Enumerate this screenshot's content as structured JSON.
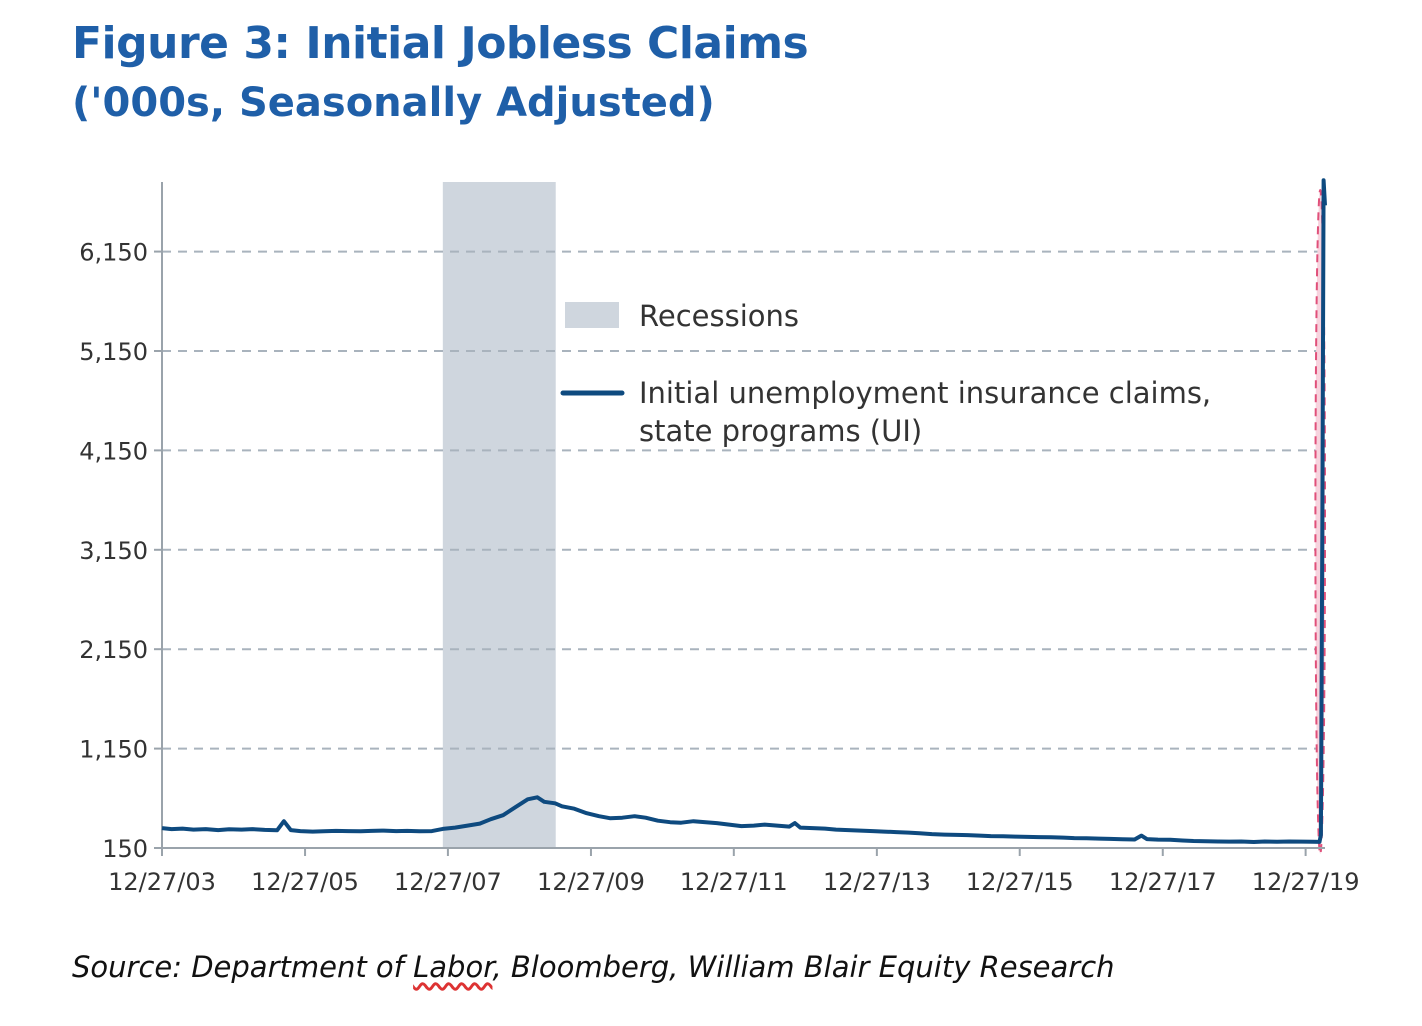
{
  "header": {
    "title": "Figure 3: Initial Jobless Claims",
    "subtitle": "('000s, Seasonally Adjusted)"
  },
  "footer": {
    "source_prefix": "Source: Department of ",
    "source_underlined": "Labor",
    "source_suffix": ", Bloomberg, William Blair Equity Research"
  },
  "chart_data": {
    "type": "line",
    "title": "Figure 3: Initial Jobless Claims",
    "subtitle": "('000s, Seasonally Adjusted)",
    "xlabel": "",
    "ylabel": "",
    "ylim": [
      150,
      6850
    ],
    "y_ticks": [
      150,
      1150,
      2150,
      3150,
      4150,
      5150,
      6150
    ],
    "y_tick_labels": [
      "150",
      "1,150",
      "2,150",
      "3,150",
      "4,150",
      "5,150",
      "6,150"
    ],
    "xlim": [
      "2003-12-27",
      "2020-04-04"
    ],
    "x_ticks": [
      "2003-12-27",
      "2005-12-27",
      "2007-12-27",
      "2009-12-27",
      "2011-12-27",
      "2013-12-27",
      "2015-12-27",
      "2017-12-27",
      "2019-12-27"
    ],
    "x_tick_labels": [
      "12/27/03",
      "12/27/05",
      "12/27/07",
      "12/27/09",
      "12/27/11",
      "12/27/13",
      "12/27/15",
      "12/27/17",
      "12/27/19"
    ],
    "grid": "horizontal dashed",
    "legend_position": "top-center",
    "colors": {
      "series": "#0e4a7f",
      "recession": "#cfd6de",
      "highlight_fill": "#f7d3de",
      "highlight_stroke": "#e0507a",
      "grid": "#a9b3bd",
      "axis": "#9aa3ab",
      "title": "#1f5fa8"
    },
    "recessions": [
      {
        "name": "Recessions",
        "start": "2007-12-01",
        "end": "2009-06-30"
      }
    ],
    "highlight": {
      "shape": "ellipse",
      "start": "2020-02-15",
      "end": "2020-04-04"
    },
    "series": [
      {
        "name": "Initial unemployment insurance claims, state programs (UI)",
        "x": [
          "2003-12-27",
          "2004-02-14",
          "2004-04-10",
          "2004-06-05",
          "2004-08-07",
          "2004-10-09",
          "2004-12-04",
          "2005-02-05",
          "2005-04-02",
          "2005-06-04",
          "2005-08-06",
          "2005-09-10",
          "2005-10-15",
          "2005-12-03",
          "2006-02-04",
          "2006-04-01",
          "2006-06-03",
          "2006-08-05",
          "2006-10-07",
          "2006-12-02",
          "2007-02-03",
          "2007-04-07",
          "2007-06-02",
          "2007-08-04",
          "2007-10-06",
          "2007-12-01",
          "2008-02-02",
          "2008-04-05",
          "2008-06-07",
          "2008-08-02",
          "2008-10-04",
          "2008-12-06",
          "2009-02-07",
          "2009-03-28",
          "2009-05-02",
          "2009-06-27",
          "2009-08-01",
          "2009-10-03",
          "2009-12-05",
          "2010-02-06",
          "2010-04-03",
          "2010-06-05",
          "2010-08-07",
          "2010-10-02",
          "2010-12-04",
          "2011-02-05",
          "2011-04-02",
          "2011-06-04",
          "2011-08-06",
          "2011-10-01",
          "2011-12-03",
          "2012-02-04",
          "2012-04-07",
          "2012-06-02",
          "2012-08-04",
          "2012-10-06",
          "2012-11-03",
          "2012-12-01",
          "2013-02-02",
          "2013-04-06",
          "2013-06-01",
          "2013-08-03",
          "2013-10-05",
          "2013-12-07",
          "2014-02-01",
          "2014-04-05",
          "2014-06-07",
          "2014-08-02",
          "2014-10-04",
          "2014-12-06",
          "2015-02-07",
          "2015-04-04",
          "2015-06-06",
          "2015-08-01",
          "2015-10-03",
          "2015-12-05",
          "2016-02-06",
          "2016-04-02",
          "2016-06-04",
          "2016-08-06",
          "2016-10-01",
          "2016-12-03",
          "2017-02-04",
          "2017-04-01",
          "2017-06-03",
          "2017-08-05",
          "2017-09-09",
          "2017-10-07",
          "2017-12-02",
          "2018-02-03",
          "2018-04-07",
          "2018-06-02",
          "2018-08-04",
          "2018-10-06",
          "2018-12-01",
          "2019-02-02",
          "2019-04-06",
          "2019-06-01",
          "2019-08-03",
          "2019-10-05",
          "2019-12-07",
          "2020-02-01",
          "2020-03-07",
          "2020-03-14",
          "2020-03-21",
          "2020-03-28",
          "2020-04-04"
        ],
        "y": [
          350,
          340,
          345,
          335,
          340,
          330,
          338,
          335,
          340,
          332,
          328,
          420,
          330,
          320,
          315,
          318,
          322,
          320,
          318,
          322,
          325,
          320,
          322,
          318,
          320,
          342,
          355,
          375,
          395,
          440,
          480,
          560,
          640,
          660,
          615,
          600,
          570,
          545,
          500,
          470,
          450,
          455,
          470,
          455,
          425,
          410,
          405,
          420,
          410,
          400,
          385,
          370,
          375,
          385,
          375,
          365,
          400,
          355,
          350,
          345,
          335,
          330,
          325,
          320,
          315,
          310,
          305,
          298,
          290,
          285,
          282,
          280,
          275,
          270,
          268,
          265,
          262,
          260,
          258,
          255,
          250,
          248,
          245,
          242,
          238,
          236,
          275,
          240,
          235,
          232,
          225,
          220,
          218,
          215,
          214,
          215,
          210,
          215,
          212,
          215,
          214,
          212,
          211,
          281,
          3307,
          6867,
          6615
        ]
      }
    ]
  }
}
